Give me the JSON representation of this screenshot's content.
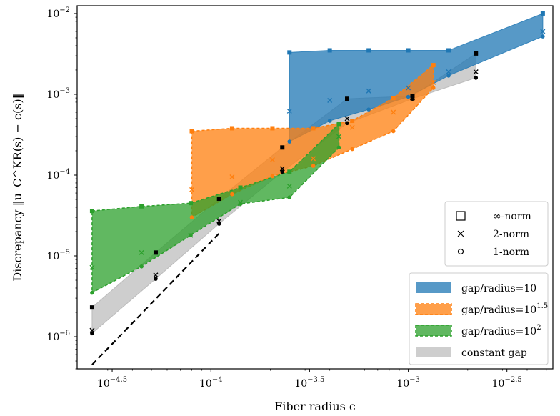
{
  "chart_data": {
    "type": "area",
    "xlabel": "Fiber radius ϵ",
    "ylabel": "Discrepancy ‖u_C^KR(s) − c(s)‖",
    "xscale": "log",
    "yscale": "log",
    "xlim": [
      2.1e-05,
      0.0054
    ],
    "ylim": [
      4e-07,
      0.0125
    ],
    "x_ticks": [
      {
        "value": 3.16e-05,
        "base": "10",
        "exp": "−4.5"
      },
      {
        "value": 0.0001,
        "base": "10",
        "exp": "−4"
      },
      {
        "value": 0.000316,
        "base": "10",
        "exp": "−3.5"
      },
      {
        "value": 0.001,
        "base": "10",
        "exp": "−3"
      },
      {
        "value": 0.00316,
        "base": "10",
        "exp": "−2.5"
      }
    ],
    "y_ticks": [
      {
        "value": 1e-06,
        "base": "10",
        "exp": "−6"
      },
      {
        "value": 1e-05,
        "base": "10",
        "exp": "−5"
      },
      {
        "value": 0.0001,
        "base": "10",
        "exp": "−4"
      },
      {
        "value": 0.001,
        "base": "10",
        "exp": "−3"
      },
      {
        "value": 0.01,
        "base": "10",
        "exp": "−2"
      }
    ],
    "grid": false,
    "marker_legend": {
      "placement": "right",
      "entries": [
        {
          "marker": "square",
          "label": "∞-norm"
        },
        {
          "marker": "x",
          "label": "2-norm"
        },
        {
          "marker": "circle",
          "label": "1-norm"
        }
      ]
    },
    "series_legend": {
      "placement": "bottom-right"
    },
    "series": [
      {
        "name": "gap/radius=10",
        "name_base": "gap/radius=10",
        "name_sup": "",
        "color": "#1f77b4",
        "dashed_edge": false,
        "x": [
          0.00025,
          0.0004,
          0.00063,
          0.001,
          0.0016,
          0.0048
        ],
        "inf_norm": [
          0.0033,
          0.0035,
          0.0035,
          0.0035,
          0.0035,
          0.01
        ],
        "two_norm": [
          0.00062,
          0.00084,
          0.0011,
          0.0012,
          0.0019,
          0.006
        ],
        "one_norm": [
          0.00026,
          0.00047,
          0.00065,
          0.00093,
          0.0017,
          0.0052
        ]
      },
      {
        "name": "gap/radius=10^1.5",
        "name_base": "gap/radius=10",
        "name_sup": "1.5",
        "color": "#ff7f0e",
        "dashed_edge": true,
        "x": [
          8e-05,
          0.000128,
          0.000205,
          0.00033,
          0.00052,
          0.00084,
          0.00134
        ],
        "inf_norm": [
          0.00035,
          0.00038,
          0.00038,
          0.00038,
          0.00047,
          0.0009,
          0.0023
        ],
        "two_norm": [
          6.6e-05,
          9.5e-05,
          0.000155,
          0.00016,
          0.00039,
          0.0006,
          0.0014
        ],
        "one_norm": [
          3e-05,
          5.8e-05,
          9.7e-05,
          0.00013,
          0.00021,
          0.00035,
          0.0012
        ]
      },
      {
        "name": "gap/radius=10^2",
        "name_base": "gap/radius=10",
        "name_sup": "2",
        "color": "#2ca02c",
        "dashed_edge": true,
        "x": [
          2.5e-05,
          4.45e-05,
          7.9e-05,
          0.000141,
          0.00025,
          0.000445
        ],
        "inf_norm": [
          3.6e-05,
          4.1e-05,
          4.5e-05,
          7e-05,
          0.00011,
          0.00043
        ],
        "two_norm": [
          7.2e-06,
          1.1e-05,
          1.8e-05,
          4.6e-05,
          7.3e-05,
          0.0003
        ],
        "one_norm": [
          3.5e-06,
          7.4e-06,
          1.8e-05,
          4.4e-05,
          5.3e-05,
          0.00022
        ]
      },
      {
        "name": "constant gap",
        "name_base": "constant gap",
        "name_sup": "",
        "color": "#b3b3b3",
        "dashed_edge": false,
        "x": [
          2.5e-05,
          5.25e-05,
          0.00011,
          0.00023,
          0.00049,
          0.00105,
          0.0022
        ],
        "inf_norm": [
          2.3e-06,
          1.1e-05,
          5.1e-05,
          0.00022,
          0.00088,
          0.00095,
          0.0032
        ],
        "two_norm": [
          1.2e-06,
          5.8e-06,
          2.7e-05,
          0.00012,
          0.0005,
          0.0009,
          0.0019
        ],
        "one_norm": [
          1.1e-06,
          5.2e-06,
          2.5e-05,
          0.00011,
          0.00044,
          0.00088,
          0.0016
        ]
      }
    ],
    "reference_line": {
      "style": "dashed",
      "color": "#000000",
      "x": [
        2.5e-05,
        0.00011
      ],
      "y": [
        4.5e-07,
        1.9e-05
      ]
    }
  }
}
